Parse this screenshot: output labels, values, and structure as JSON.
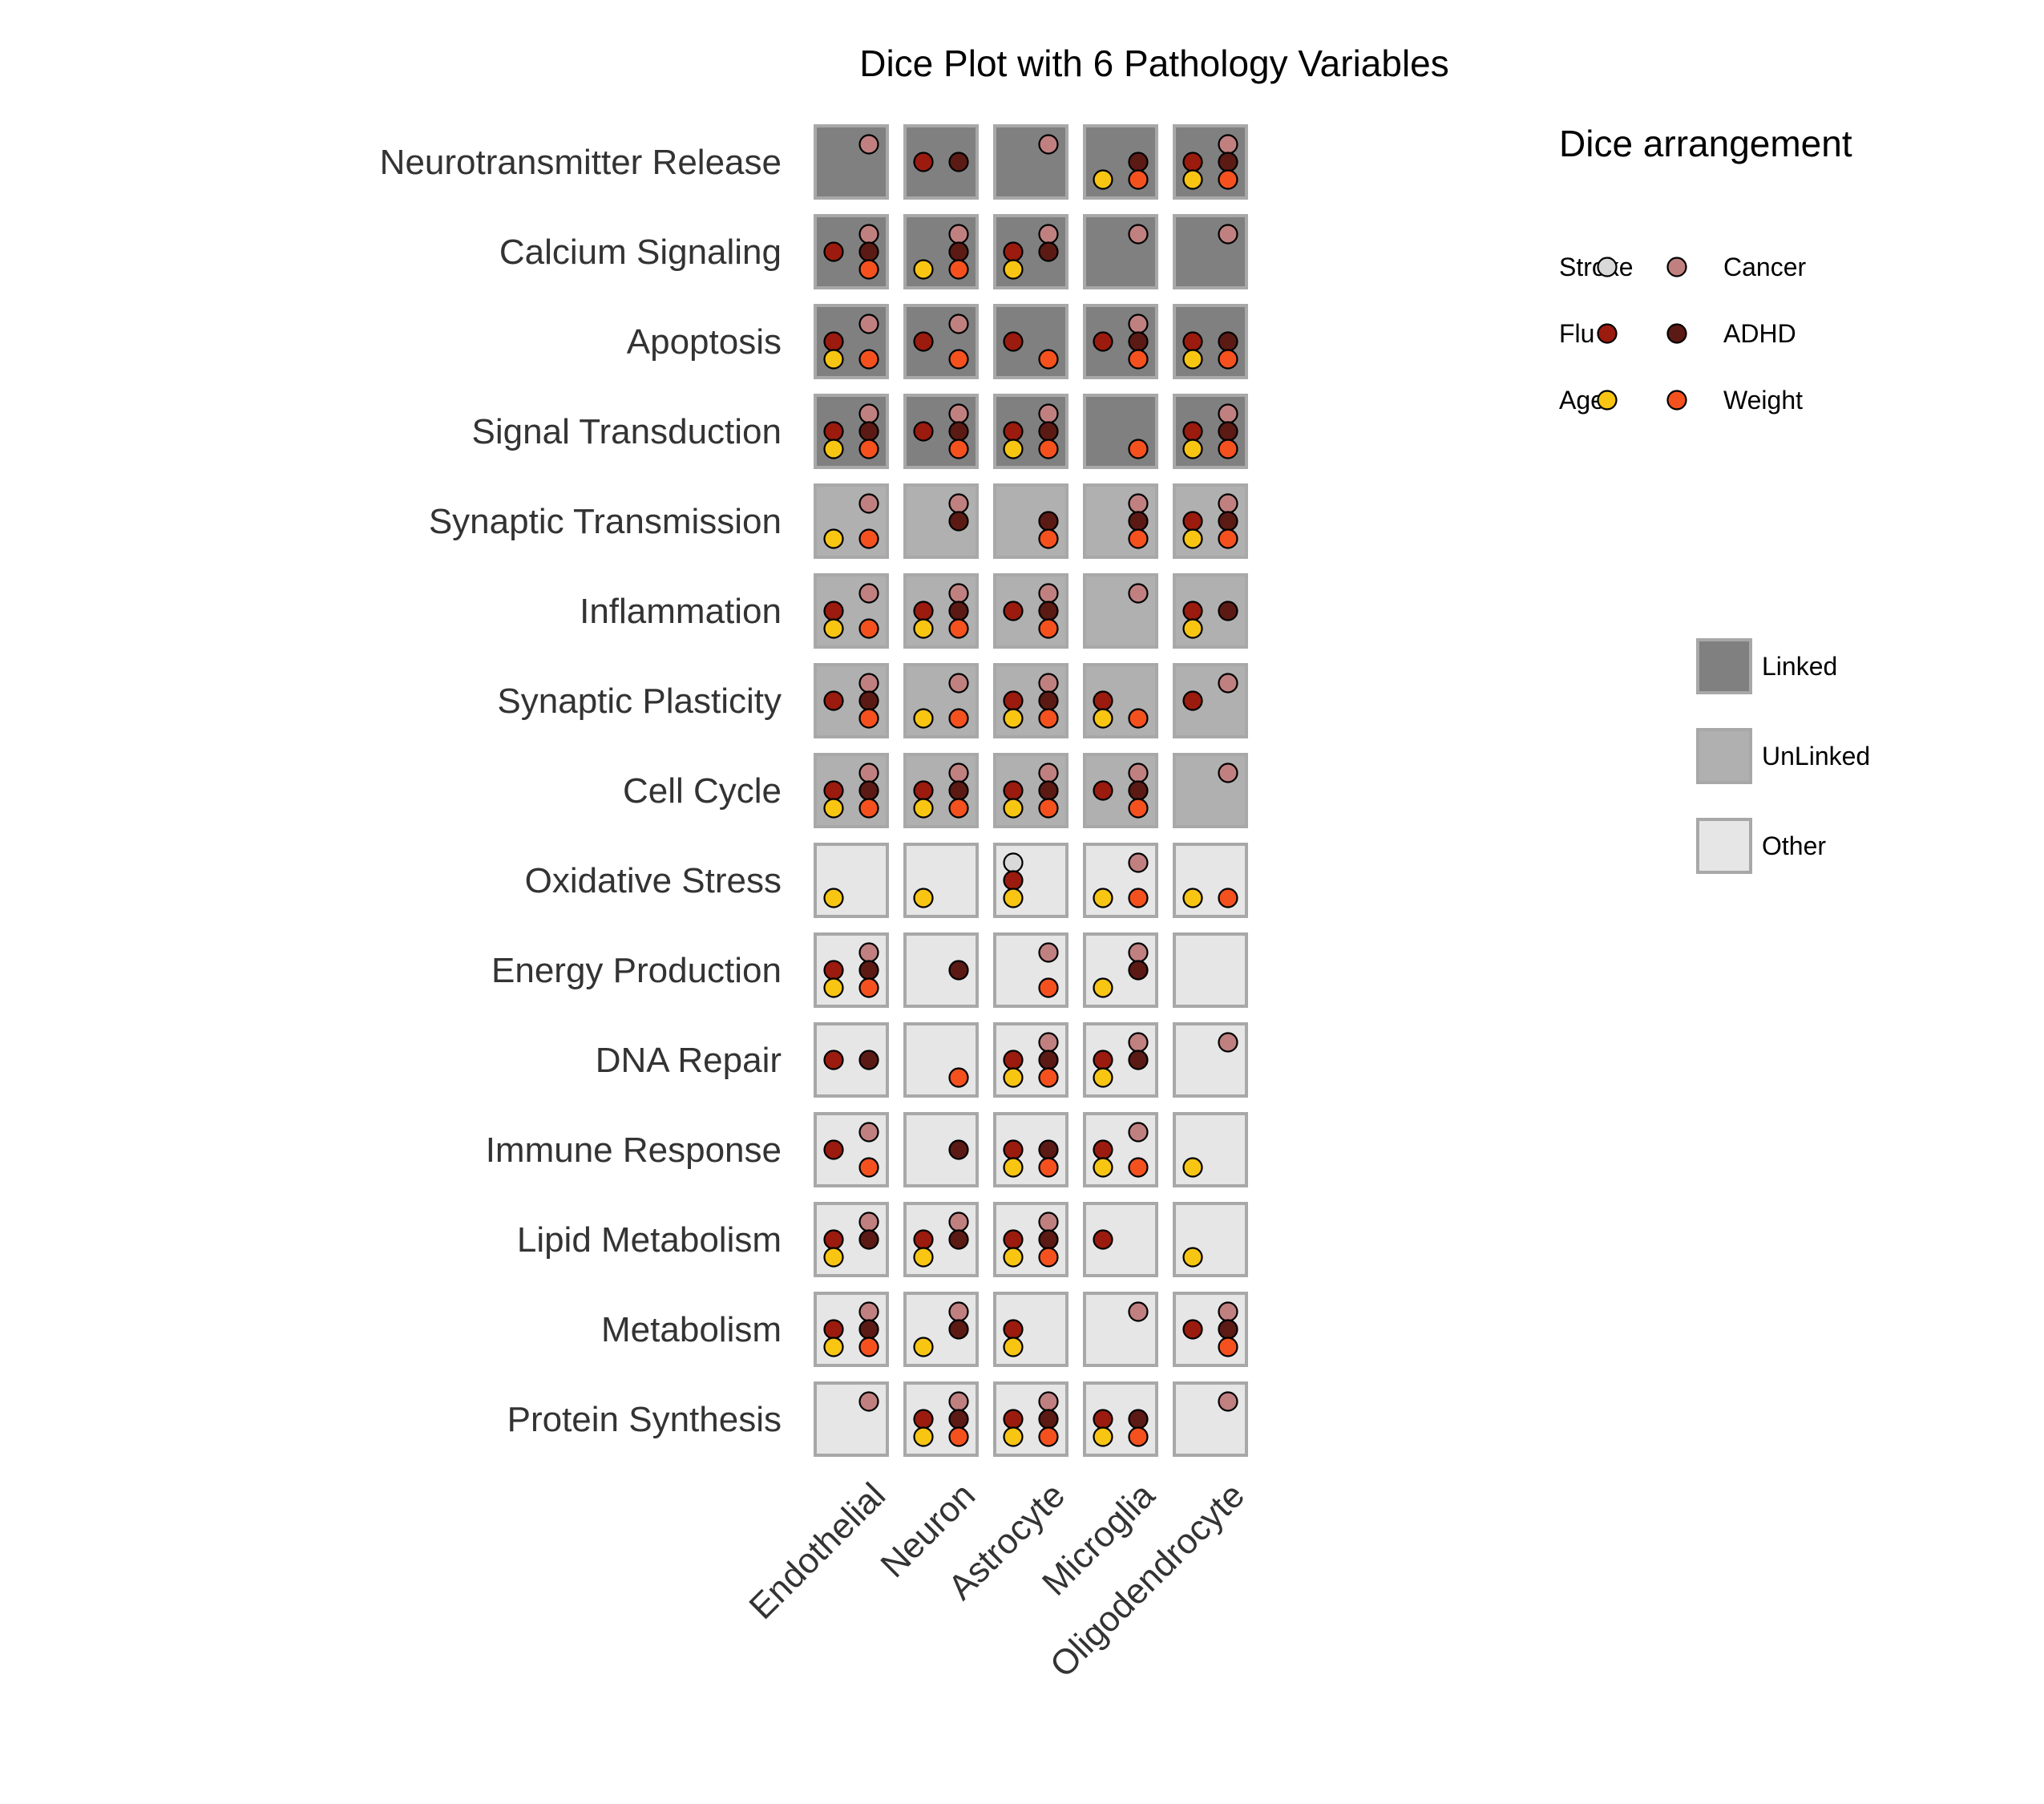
{
  "chart_data": {
    "type": "dice",
    "title": "Dice Plot with 6 Pathology Variables",
    "cell_types": [
      "Endothelial",
      "Neuron",
      "Astrocyte",
      "Microglia",
      "Oligodendrocyte"
    ],
    "pathways": [
      "Neurotransmitter Release",
      "Calcium Signaling",
      "Apoptosis",
      "Signal Transduction",
      "Synaptic Transmission",
      "Inflammation",
      "Synaptic Plasticity",
      "Cell Cycle",
      "Oxidative Stress",
      "Energy Production",
      "DNA Repair",
      "Immune Response",
      "Lipid Metabolism",
      "Metabolism",
      "Protein Synthesis"
    ],
    "groups": [
      {
        "name": "Linked",
        "color": "#808080"
      },
      {
        "name": "UnLinked",
        "color": "#B0B0B0"
      },
      {
        "name": "Other",
        "color": "#E6E6E6"
      }
    ],
    "pathway_group": [
      "Linked",
      "Linked",
      "Linked",
      "Linked",
      "UnLinked",
      "UnLinked",
      "UnLinked",
      "UnLinked",
      "Other",
      "Other",
      "Other",
      "Other",
      "Other",
      "Other",
      "Other"
    ],
    "variables": [
      {
        "name": "Stroke",
        "color": "#D9D9D9",
        "position": "top-left"
      },
      {
        "name": "Cancer",
        "color": "#C08080",
        "position": "top-right"
      },
      {
        "name": "Flu",
        "color": "#9B1B0E",
        "position": "middle-left"
      },
      {
        "name": "ADHD",
        "color": "#5C1A14",
        "position": "middle-right"
      },
      {
        "name": "Age",
        "color": "#F7C512",
        "position": "bottom-left"
      },
      {
        "name": "Weight",
        "color": "#F4511E",
        "position": "bottom-right"
      }
    ],
    "cells": [
      [
        [
          "Cancer"
        ],
        [
          "Flu",
          "ADHD"
        ],
        [
          "Cancer"
        ],
        [
          "ADHD",
          "Age",
          "Weight"
        ],
        [
          "Cancer",
          "Flu",
          "ADHD",
          "Age",
          "Weight"
        ]
      ],
      [
        [
          "Cancer",
          "Flu",
          "ADHD",
          "Weight"
        ],
        [
          "Cancer",
          "ADHD",
          "Age",
          "Weight"
        ],
        [
          "Cancer",
          "Flu",
          "ADHD",
          "Age"
        ],
        [
          "Cancer"
        ],
        [
          "Cancer"
        ]
      ],
      [
        [
          "Cancer",
          "Flu",
          "Age",
          "Weight"
        ],
        [
          "Cancer",
          "Flu",
          "Weight"
        ],
        [
          "Flu",
          "Weight"
        ],
        [
          "Cancer",
          "Flu",
          "ADHD",
          "Weight"
        ],
        [
          "Flu",
          "ADHD",
          "Age",
          "Weight"
        ]
      ],
      [
        [
          "Cancer",
          "Flu",
          "ADHD",
          "Age",
          "Weight"
        ],
        [
          "Cancer",
          "Flu",
          "ADHD",
          "Weight"
        ],
        [
          "Cancer",
          "Flu",
          "ADHD",
          "Age",
          "Weight"
        ],
        [
          "Weight"
        ],
        [
          "Cancer",
          "Flu",
          "ADHD",
          "Age",
          "Weight"
        ]
      ],
      [
        [
          "Cancer",
          "Age",
          "Weight"
        ],
        [
          "Cancer",
          "ADHD"
        ],
        [
          "ADHD",
          "Weight"
        ],
        [
          "Cancer",
          "ADHD",
          "Weight"
        ],
        [
          "Cancer",
          "Flu",
          "ADHD",
          "Age",
          "Weight"
        ]
      ],
      [
        [
          "Cancer",
          "Flu",
          "Age",
          "Weight"
        ],
        [
          "Cancer",
          "Flu",
          "ADHD",
          "Age",
          "Weight"
        ],
        [
          "Cancer",
          "Flu",
          "ADHD",
          "Weight"
        ],
        [
          "Cancer"
        ],
        [
          "Flu",
          "ADHD",
          "Age"
        ]
      ],
      [
        [
          "Cancer",
          "Flu",
          "ADHD",
          "Weight"
        ],
        [
          "Cancer",
          "Age",
          "Weight"
        ],
        [
          "Cancer",
          "Flu",
          "ADHD",
          "Age",
          "Weight"
        ],
        [
          "Flu",
          "Age",
          "Weight"
        ],
        [
          "Cancer",
          "Flu"
        ]
      ],
      [
        [
          "Cancer",
          "Flu",
          "ADHD",
          "Age",
          "Weight"
        ],
        [
          "Cancer",
          "Flu",
          "ADHD",
          "Age",
          "Weight"
        ],
        [
          "Cancer",
          "Flu",
          "ADHD",
          "Age",
          "Weight"
        ],
        [
          "Cancer",
          "Flu",
          "ADHD",
          "Weight"
        ],
        [
          "Cancer"
        ]
      ],
      [
        [
          "Age"
        ],
        [
          "Age"
        ],
        [
          "Stroke",
          "Flu",
          "Age"
        ],
        [
          "Cancer",
          "Age",
          "Weight"
        ],
        [
          "Age",
          "Weight"
        ]
      ],
      [
        [
          "Cancer",
          "Flu",
          "ADHD",
          "Age",
          "Weight"
        ],
        [
          "ADHD"
        ],
        [
          "Cancer",
          "Weight"
        ],
        [
          "Cancer",
          "ADHD",
          "Age"
        ],
        []
      ],
      [
        [
          "Flu",
          "ADHD"
        ],
        [
          "Weight"
        ],
        [
          "Cancer",
          "Flu",
          "ADHD",
          "Age",
          "Weight"
        ],
        [
          "Cancer",
          "Flu",
          "ADHD",
          "Age"
        ],
        [
          "Cancer"
        ]
      ],
      [
        [
          "Cancer",
          "Flu",
          "Weight"
        ],
        [
          "ADHD"
        ],
        [
          "Flu",
          "ADHD",
          "Age",
          "Weight"
        ],
        [
          "Cancer",
          "Flu",
          "Age",
          "Weight"
        ],
        [
          "Age"
        ]
      ],
      [
        [
          "Cancer",
          "Flu",
          "ADHD",
          "Age"
        ],
        [
          "Cancer",
          "Flu",
          "ADHD",
          "Age"
        ],
        [
          "Cancer",
          "Flu",
          "ADHD",
          "Age",
          "Weight"
        ],
        [
          "Flu"
        ],
        [
          "Age"
        ]
      ],
      [
        [
          "Cancer",
          "Flu",
          "ADHD",
          "Age",
          "Weight"
        ],
        [
          "Cancer",
          "ADHD",
          "Age"
        ],
        [
          "Flu",
          "Age"
        ],
        [
          "Cancer"
        ],
        [
          "Cancer",
          "Flu",
          "ADHD",
          "Weight"
        ]
      ],
      [
        [
          "Cancer"
        ],
        [
          "Cancer",
          "Flu",
          "ADHD",
          "Age",
          "Weight"
        ],
        [
          "Cancer",
          "Flu",
          "ADHD",
          "Age",
          "Weight"
        ],
        [
          "Flu",
          "ADHD",
          "Age",
          "Weight"
        ],
        [
          "Cancer"
        ]
      ]
    ],
    "legend": {
      "title": "Dice arrangement",
      "placement": "right"
    }
  }
}
